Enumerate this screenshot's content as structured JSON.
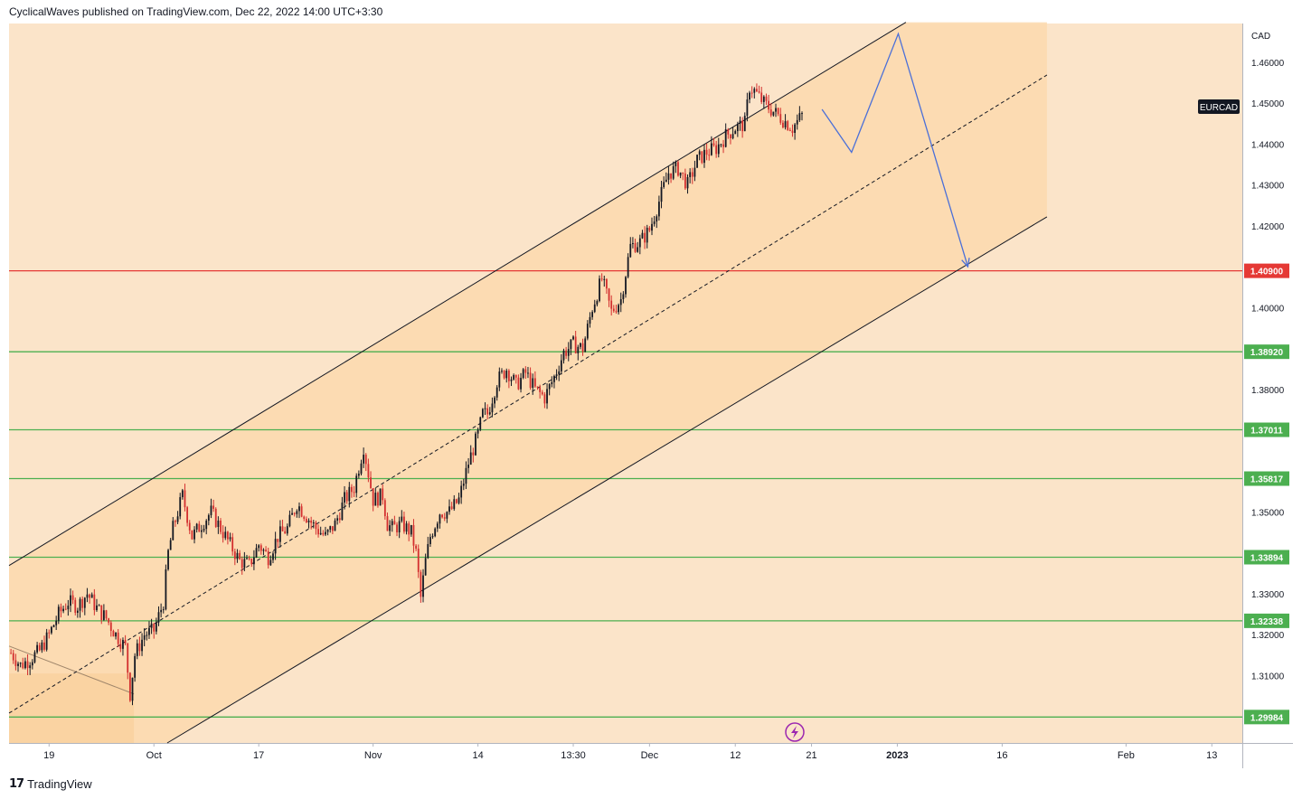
{
  "header": {
    "publisher": "CyclicalWaves",
    "published_text": "published on TradingView.com, Dec 22, 2022 14:00 UTC+3:30"
  },
  "footer": {
    "brand": "TradingView",
    "logo_text": "17"
  },
  "colors": {
    "background": "#fbe4c9",
    "channel_fill": "#fbd9ae",
    "up_candle": "#131722",
    "down_candle": "#d32f2f",
    "resistance": "#e53935",
    "support": "#4caf50",
    "projection": "#4a6fd8"
  },
  "chart_data": {
    "type": "candlestick",
    "symbol": "EURCAD",
    "currency": "CAD",
    "ylim": [
      1.2935,
      1.4695
    ],
    "y_ticks": [
      1.46,
      1.45,
      1.44,
      1.43,
      1.42,
      1.4,
      1.38,
      1.35,
      1.33,
      1.32,
      1.31
    ],
    "y_tick_labels": [
      "1.46000",
      "1.45000",
      "1.44000",
      "1.43000",
      "1.42000",
      "1.40000",
      "1.38000",
      "1.35000",
      "1.33000",
      "1.32000",
      "1.31000"
    ],
    "x_ticks": [
      {
        "label": "19",
        "day": 0,
        "bold": false
      },
      {
        "label": "Oct",
        "day": 11,
        "bold": false
      },
      {
        "label": "17",
        "day": 22,
        "bold": false
      },
      {
        "label": "Nov",
        "day": 34,
        "bold": false
      },
      {
        "label": "14",
        "day": 45,
        "bold": false
      },
      {
        "label": "13:30",
        "day": 55,
        "bold": false
      },
      {
        "label": "Dec",
        "day": 63,
        "bold": false
      },
      {
        "label": "12",
        "day": 72,
        "bold": false
      },
      {
        "label": "21",
        "day": 80,
        "bold": false
      },
      {
        "label": "2023",
        "day": 89,
        "bold": true
      },
      {
        "label": "16",
        "day": 100,
        "bold": false
      },
      {
        "label": "Feb",
        "day": 113,
        "bold": false
      },
      {
        "label": "13",
        "day": 122,
        "bold": false
      }
    ],
    "horizontal_levels": [
      {
        "value": 1.409,
        "label": "1.40900",
        "kind": "resistance"
      },
      {
        "value": 1.3892,
        "label": "1.38920",
        "kind": "support"
      },
      {
        "value": 1.37011,
        "label": "1.37011",
        "kind": "support"
      },
      {
        "value": 1.35817,
        "label": "1.35817",
        "kind": "support"
      },
      {
        "value": 1.33894,
        "label": "1.33894",
        "kind": "support"
      },
      {
        "value": 1.32338,
        "label": "1.32338",
        "kind": "support"
      },
      {
        "value": 1.29984,
        "label": "1.29984",
        "kind": "support"
      }
    ],
    "channel": {
      "upper": [
        [
          -4.2,
          1.3369
        ],
        [
          89.9,
          1.4698
        ]
      ],
      "middle": [
        [
          -4.2,
          1.3008
        ],
        [
          104.7,
          1.4569
        ]
      ],
      "lower": [
        [
          12.4,
          1.2935
        ],
        [
          104.7,
          1.4222
        ]
      ]
    },
    "projection_path": [
      [
        81.1,
        1.4485
      ],
      [
        84.2,
        1.438
      ],
      [
        89.1,
        1.467
      ],
      [
        96.4,
        1.41
      ]
    ],
    "candle_path": [
      [
        -4.0,
        1.3155
      ],
      [
        -3.0,
        1.3125
      ],
      [
        -2.0,
        1.314
      ],
      [
        -1.0,
        1.316
      ],
      [
        0.0,
        1.32
      ],
      [
        1.0,
        1.325
      ],
      [
        2.0,
        1.328
      ],
      [
        3.0,
        1.327
      ],
      [
        4.0,
        1.33
      ],
      [
        5.0,
        1.3265
      ],
      [
        6.0,
        1.324
      ],
      [
        7.0,
        1.32
      ],
      [
        8.0,
        1.317
      ],
      [
        8.5,
        1.3055
      ],
      [
        9.0,
        1.315
      ],
      [
        10.0,
        1.32
      ],
      [
        11.0,
        1.321
      ],
      [
        12.0,
        1.328
      ],
      [
        12.5,
        1.34
      ],
      [
        13.0,
        1.346
      ],
      [
        14.0,
        1.354
      ],
      [
        15.0,
        1.344
      ],
      [
        16.0,
        1.347
      ],
      [
        17.0,
        1.35
      ],
      [
        18.0,
        1.346
      ],
      [
        19.0,
        1.342
      ],
      [
        20.0,
        1.338
      ],
      [
        21.0,
        1.337
      ],
      [
        22.0,
        1.342
      ],
      [
        23.0,
        1.339
      ],
      [
        24.0,
        1.344
      ],
      [
        25.0,
        1.346
      ],
      [
        26.0,
        1.352
      ],
      [
        27.0,
        1.349
      ],
      [
        28.0,
        1.346
      ],
      [
        29.0,
        1.344
      ],
      [
        30.0,
        1.347
      ],
      [
        31.0,
        1.353
      ],
      [
        32.0,
        1.356
      ],
      [
        33.0,
        1.366
      ],
      [
        34.0,
        1.353
      ],
      [
        35.0,
        1.354
      ],
      [
        35.5,
        1.347
      ],
      [
        36.0,
        1.346
      ],
      [
        37.0,
        1.347
      ],
      [
        38.0,
        1.345
      ],
      [
        38.5,
        1.34
      ],
      [
        39.0,
        1.329
      ],
      [
        39.5,
        1.338
      ],
      [
        40.0,
        1.344
      ],
      [
        41.0,
        1.35
      ],
      [
        42.0,
        1.35
      ],
      [
        43.0,
        1.353
      ],
      [
        44.0,
        1.362
      ],
      [
        45.0,
        1.369
      ],
      [
        45.5,
        1.374
      ],
      [
        46.0,
        1.374
      ],
      [
        47.0,
        1.382
      ],
      [
        48.0,
        1.385
      ],
      [
        49.0,
        1.381
      ],
      [
        50.0,
        1.384
      ],
      [
        51.0,
        1.38
      ],
      [
        52.0,
        1.378
      ],
      [
        53.0,
        1.383
      ],
      [
        54.0,
        1.389
      ],
      [
        55.0,
        1.391
      ],
      [
        56.0,
        1.39
      ],
      [
        57.0,
        1.4
      ],
      [
        58.0,
        1.407
      ],
      [
        59.0,
        1.399
      ],
      [
        60.0,
        1.402
      ],
      [
        61.0,
        1.415
      ],
      [
        62.0,
        1.416
      ],
      [
        63.0,
        1.419
      ],
      [
        64.0,
        1.426
      ],
      [
        65.0,
        1.433
      ],
      [
        66.0,
        1.434
      ],
      [
        67.0,
        1.43
      ],
      [
        68.0,
        1.436
      ],
      [
        69.0,
        1.438
      ],
      [
        70.0,
        1.439
      ],
      [
        71.0,
        1.442
      ],
      [
        72.0,
        1.444
      ],
      [
        73.0,
        1.445
      ],
      [
        73.5,
        1.454
      ],
      [
        74.0,
        1.453
      ],
      [
        75.0,
        1.45
      ],
      [
        76.0,
        1.448
      ],
      [
        77.0,
        1.446
      ],
      [
        78.0,
        1.444
      ],
      [
        79.0,
        1.447
      ]
    ]
  }
}
